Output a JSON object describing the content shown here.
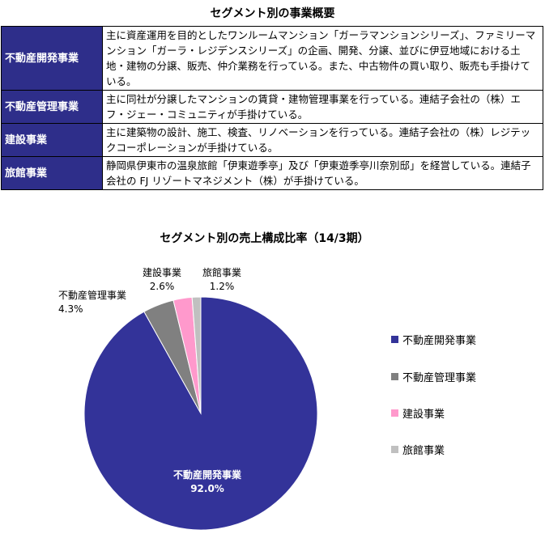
{
  "table": {
    "title": "セグメント別の事業概要",
    "rows": [
      {
        "segment": "不動産開発事業",
        "description": "主に資産運用を目的としたワンルームマンション「ガーラマンションシリーズ」、ファミリーマンション「ガーラ・レジデンスシリーズ」の企画、開発、分譲、並びに伊豆地域における土地・建物の分譲、販売、仲介業務を行っている。また、中古物件の買い取り、販売も手掛けている。"
      },
      {
        "segment": "不動産管理事業",
        "description": "主に同社が分譲したマンションの賃貸・建物管理事業を行っている。連結子会社の（株）エフ・ジェー・コミュニティが手掛けている。"
      },
      {
        "segment": "建設事業",
        "description": "主に建築物の設計、施工、検査、リノベーションを行っている。連結子会社の（株）レジテックコーポレーションが手掛けている。"
      },
      {
        "segment": "旅館事業",
        "description": "静岡県伊東市の温泉旅館「伊東遊季亭」及び「伊東遊季亭川奈別邸」を経営している。連結子会社の FJ リゾートマネジメント（株）が手掛けている。"
      }
    ]
  },
  "chart_data": {
    "type": "pie",
    "title": "セグメント別の売上構成比率（14/3期）",
    "start": "12 o'clock, clockwise",
    "legend_position": "right",
    "slices": [
      {
        "label": "不動産開発事業",
        "value": 92.0,
        "display": "92.0%",
        "color": "#333399"
      },
      {
        "label": "不動産管理事業",
        "value": 4.3,
        "display": "4.3%",
        "color": "#808080"
      },
      {
        "label": "建設事業",
        "value": 2.6,
        "display": "2.6%",
        "color": "#ff99cc"
      },
      {
        "label": "旅館事業",
        "value": 1.2,
        "display": "1.2%",
        "color": "#c0c0c0"
      }
    ]
  }
}
